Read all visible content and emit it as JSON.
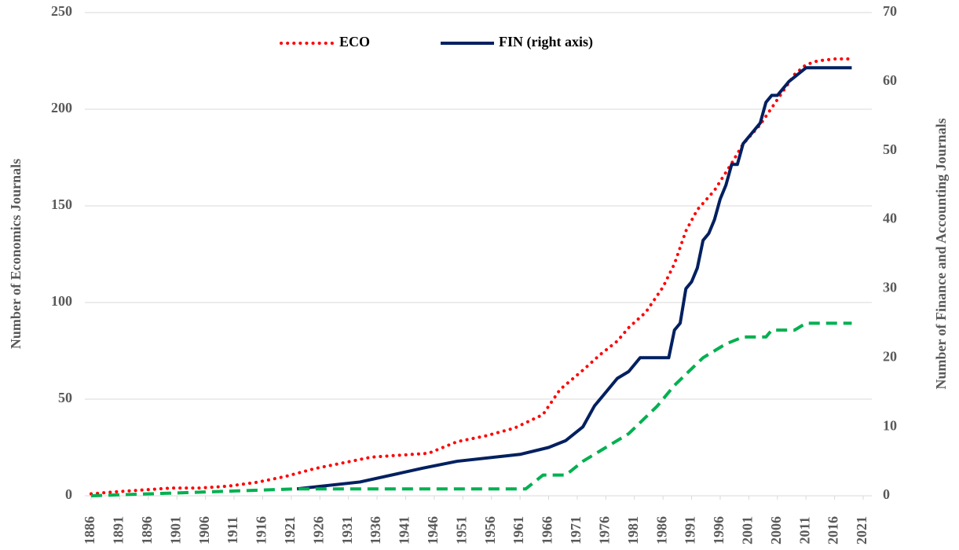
{
  "chart_data": {
    "type": "line",
    "xlabel": null,
    "ylabel": "Number of Economics Journals",
    "y2label": "Number of Finance and Accounting Journals",
    "xlim": [
      1886,
      2021
    ],
    "xticks": [
      1886,
      1891,
      1896,
      1901,
      1906,
      1911,
      1916,
      1921,
      1926,
      1931,
      1936,
      1941,
      1946,
      1951,
      1956,
      1961,
      1966,
      1971,
      1976,
      1981,
      1986,
      1991,
      1996,
      2001,
      2006,
      2011,
      2016,
      2021
    ],
    "ylim": [
      0,
      250
    ],
    "yticks": [
      0,
      50,
      100,
      150,
      200,
      250
    ],
    "y2lim": [
      0,
      70
    ],
    "y2ticks": [
      0,
      10,
      20,
      30,
      40,
      50,
      60,
      70
    ],
    "grid": true,
    "legend": "top",
    "series": [
      {
        "name": "ECO",
        "color": "#ff0000",
        "dash": "dotted",
        "axis": "y",
        "x": [
          1886,
          1890,
          1895,
          1900,
          1905,
          1910,
          1915,
          1920,
          1925,
          1930,
          1935,
          1940,
          1945,
          1950,
          1955,
          1960,
          1965,
          1968,
          1972,
          1975,
          1978,
          1980,
          1983,
          1986,
          1988,
          1990,
          1992,
          1995,
          1998,
          2000,
          2003,
          2006,
          2009,
          2011,
          2013,
          2016,
          2019
        ],
        "values": [
          1,
          2,
          3,
          4,
          4,
          5,
          7,
          10,
          14,
          17,
          20,
          21,
          22,
          28,
          31,
          35,
          42,
          55,
          65,
          73,
          80,
          87,
          95,
          108,
          120,
          137,
          148,
          158,
          172,
          182,
          192,
          205,
          218,
          223,
          225,
          226,
          226
        ]
      },
      {
        "name": "FIN (right axis)",
        "color": "#002060",
        "dash": "solid",
        "axis": "y2",
        "x": [
          1922,
          1933,
          1944,
          1950,
          1961,
          1966,
          1969,
          1972,
          1974,
          1976,
          1978,
          1980,
          1982,
          1987,
          1988,
          1989,
          1990,
          1991,
          1992,
          1993,
          1994,
          1995,
          1996,
          1997,
          1998,
          1999,
          2000,
          2002,
          2003,
          2004,
          2005,
          2006,
          2008,
          2011,
          2019
        ],
        "values": [
          1,
          2,
          4,
          5,
          6,
          7,
          8,
          10,
          13,
          15,
          17,
          18,
          20,
          20,
          24,
          25,
          30,
          31,
          33,
          37,
          38,
          40,
          43,
          45,
          48,
          48,
          51,
          53,
          54,
          57,
          58,
          58,
          60,
          62,
          62
        ]
      },
      {
        "color": "#00b050",
        "dash": "dashed",
        "axis": "y2",
        "x": [
          1886,
          1922,
          1962,
          1965,
          1969,
          1972,
          1976,
          1980,
          1985,
          1988,
          1993,
          1997,
          2000,
          2004,
          2005,
          2009,
          2011,
          2019
        ],
        "values": [
          0,
          1,
          1,
          3,
          3,
          5,
          7,
          9,
          13,
          16,
          20,
          22,
          23,
          23,
          24,
          24,
          25,
          25
        ]
      }
    ]
  }
}
